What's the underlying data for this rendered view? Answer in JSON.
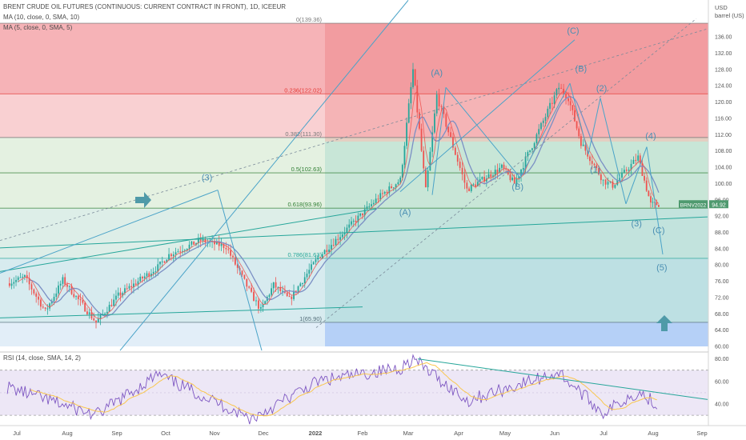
{
  "header": {
    "title": "BRENT CRUDE OIL FUTURES (CONTINUOUS: CURRENT CONTRACT IN FRONT), 1D, ICEEUR",
    "ma10": "MA (10, close, 0, SMA, 10)",
    "ma5": "MA (5, close, 0, SMA, 5)"
  },
  "axis": {
    "unit_line1": "USD",
    "unit_line2": "barrel (US)",
    "price_ticks": [
      60,
      64,
      68,
      72,
      76,
      80,
      84,
      88,
      92,
      96,
      100,
      104,
      108,
      112,
      116,
      120,
      124,
      128,
      132,
      136
    ],
    "rsi_ticks": [
      40,
      60,
      80
    ],
    "time_labels": [
      "Jul",
      "Aug",
      "Sep",
      "Oct",
      "Nov",
      "Dec",
      "2022",
      "Feb",
      "Mar",
      "Apr",
      "May",
      "Jun",
      "Jul",
      "Aug",
      "Sep"
    ]
  },
  "fib": [
    {
      "label": "0(139.36)",
      "value": 139.36,
      "color": "#787878"
    },
    {
      "label": "0.236(122.02)",
      "value": 122.02,
      "color": "#e53935"
    },
    {
      "label": "0.382(111.30)",
      "value": 111.3,
      "color": "#787878"
    },
    {
      "label": "0.5(102.63)",
      "value": 102.63,
      "color": "#2e7d32"
    },
    {
      "label": "0.618(93.96)",
      "value": 93.96,
      "color": "#2e7d32"
    },
    {
      "label": "0.786(81.63)",
      "value": 81.63,
      "color": "#26a69a"
    },
    {
      "label": "1(65.90)",
      "value": 65.9,
      "color": "#546e7a"
    }
  ],
  "waves": [
    {
      "text": "(3)",
      "x": "2021-10-29",
      "y": 100.8
    },
    {
      "text": "(A)",
      "x": "2022-03-03",
      "y": 92.2
    },
    {
      "text": "(A)",
      "x": "2022-03-23",
      "y": 126.5
    },
    {
      "text": "(B)",
      "x": "2022-05-13",
      "y": 98.5
    },
    {
      "text": "(C)",
      "x": "2022-06-17",
      "y": 136.8
    },
    {
      "text": "(B)",
      "x": "2022-06-22",
      "y": 127.5
    },
    {
      "text": "(2)",
      "x": "2022-07-05",
      "y": 122.7
    },
    {
      "text": "(1)",
      "x": "2022-07-01",
      "y": 102.7
    },
    {
      "text": "(4)",
      "x": "2022-08-05",
      "y": 111.0
    },
    {
      "text": "(3)",
      "x": "2022-07-27",
      "y": 89.5
    },
    {
      "text": "(C)",
      "x": "2022-08-10",
      "y": 87.8
    },
    {
      "text": "(5)",
      "x": "2022-08-12",
      "y": 78.7
    }
  ],
  "last_price": {
    "label": "BRNV2022",
    "value": "94.92"
  },
  "rsi_label": "RSI (14, close, SMA, 14, 2)",
  "colors": {
    "candle_up": "#26a69a",
    "candle_down": "#ef5350",
    "ma10": "#7b8fc4",
    "ma5": "#ef5350",
    "trendline": "#4aa3c8",
    "channel": "#26a69a",
    "rsi": "#7e57c2",
    "rsi_ma": "#f9c74f"
  },
  "chart_data": {
    "type": "candlestick",
    "x_unit": "date",
    "y_unit": "USD per barrel",
    "ylim": [
      60,
      140
    ],
    "close_anchors": [
      [
        "2021-06-25",
        75.5
      ],
      [
        "2021-07-06",
        77.0
      ],
      [
        "2021-07-19",
        68.6
      ],
      [
        "2021-07-30",
        76.3
      ],
      [
        "2021-08-20",
        65.9
      ],
      [
        "2021-09-03",
        72.5
      ],
      [
        "2021-09-28",
        79.5
      ],
      [
        "2021-10-05",
        82.5
      ],
      [
        "2021-10-25",
        86.0
      ],
      [
        "2021-11-10",
        84.5
      ],
      [
        "2021-11-26",
        72.7
      ],
      [
        "2021-12-02",
        68.9
      ],
      [
        "2021-12-10",
        75.1
      ],
      [
        "2021-12-20",
        71.5
      ],
      [
        "2022-01-07",
        81.8
      ],
      [
        "2022-02-14",
        96.5
      ],
      [
        "2022-02-28",
        100.9
      ],
      [
        "2022-03-08",
        127.9
      ],
      [
        "2022-03-16",
        98.0
      ],
      [
        "2022-03-23",
        121.6
      ],
      [
        "2022-04-11",
        98.5
      ],
      [
        "2022-05-03",
        104.0
      ],
      [
        "2022-05-11",
        100.0
      ],
      [
        "2022-06-08",
        123.6
      ],
      [
        "2022-06-14",
        121.0
      ],
      [
        "2022-06-22",
        110.0
      ],
      [
        "2022-07-06",
        100.7
      ],
      [
        "2022-07-12",
        99.5
      ],
      [
        "2022-07-28",
        106.5
      ],
      [
        "2022-08-05",
        94.9
      ],
      [
        "2022-08-10",
        94.92
      ]
    ],
    "rsi_anchors": [
      [
        "2021-06-25",
        55
      ],
      [
        "2021-08-20",
        30
      ],
      [
        "2021-09-28",
        66
      ],
      [
        "2021-11-26",
        27
      ],
      [
        "2022-01-07",
        60
      ],
      [
        "2022-02-28",
        72
      ],
      [
        "2022-03-08",
        80
      ],
      [
        "2022-04-11",
        43
      ],
      [
        "2022-06-08",
        68
      ],
      [
        "2022-07-06",
        32
      ],
      [
        "2022-07-28",
        51
      ],
      [
        "2022-08-10",
        39
      ]
    ]
  }
}
